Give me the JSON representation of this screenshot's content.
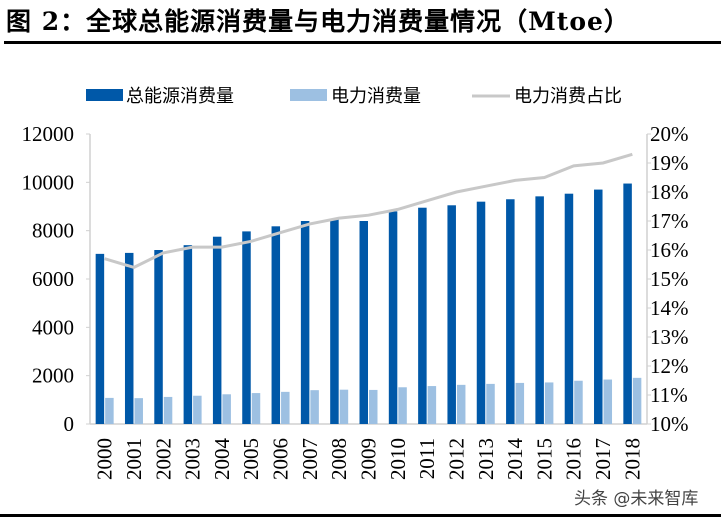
{
  "title": "图 2：全球总能源消费量与电力消费量情况（Mtoe）",
  "watermark": "头条 @未来智库",
  "chart_data": {
    "type": "bar",
    "title": "图 2：全球总能源消费量与电力消费量情况（Mtoe）",
    "categories": [
      "2000",
      "2001",
      "2002",
      "2003",
      "2004",
      "2005",
      "2006",
      "2007",
      "2008",
      "2009",
      "2010",
      "2011",
      "2012",
      "2013",
      "2014",
      "2015",
      "2016",
      "2017",
      "2018"
    ],
    "series": [
      {
        "name": "总能源消费量",
        "type": "bar",
        "axis": "left",
        "color": "#0058a8",
        "values": [
          7040,
          7080,
          7200,
          7400,
          7750,
          7970,
          8180,
          8400,
          8500,
          8400,
          8800,
          8950,
          9050,
          9200,
          9300,
          9420,
          9530,
          9700,
          9950
        ]
      },
      {
        "name": "电力消费量",
        "type": "bar",
        "axis": "left",
        "color": "#9dc0e2",
        "values": [
          1080,
          1070,
          1120,
          1170,
          1230,
          1280,
          1330,
          1400,
          1420,
          1410,
          1520,
          1570,
          1620,
          1660,
          1700,
          1720,
          1790,
          1840,
          1910
        ]
      },
      {
        "name": "电力消费占比",
        "type": "line",
        "axis": "right",
        "color": "#c8c8c8",
        "values": [
          15.7,
          15.4,
          15.9,
          16.1,
          16.1,
          16.3,
          16.6,
          16.9,
          17.1,
          17.2,
          17.4,
          17.7,
          18.0,
          18.2,
          18.4,
          18.5,
          18.9,
          19.0,
          19.3
        ]
      }
    ],
    "ylim": [
      0,
      12000
    ],
    "yticks": [
      "0",
      "2000",
      "4000",
      "6000",
      "8000",
      "10000",
      "12000"
    ],
    "y2lim": [
      10,
      20
    ],
    "y2ticks": [
      "10%",
      "11%",
      "12%",
      "13%",
      "14%",
      "15%",
      "16%",
      "17%",
      "18%",
      "19%",
      "20%"
    ],
    "xlabel": "",
    "ylabel": "",
    "y2label": "",
    "legend": "top",
    "grid": false
  }
}
